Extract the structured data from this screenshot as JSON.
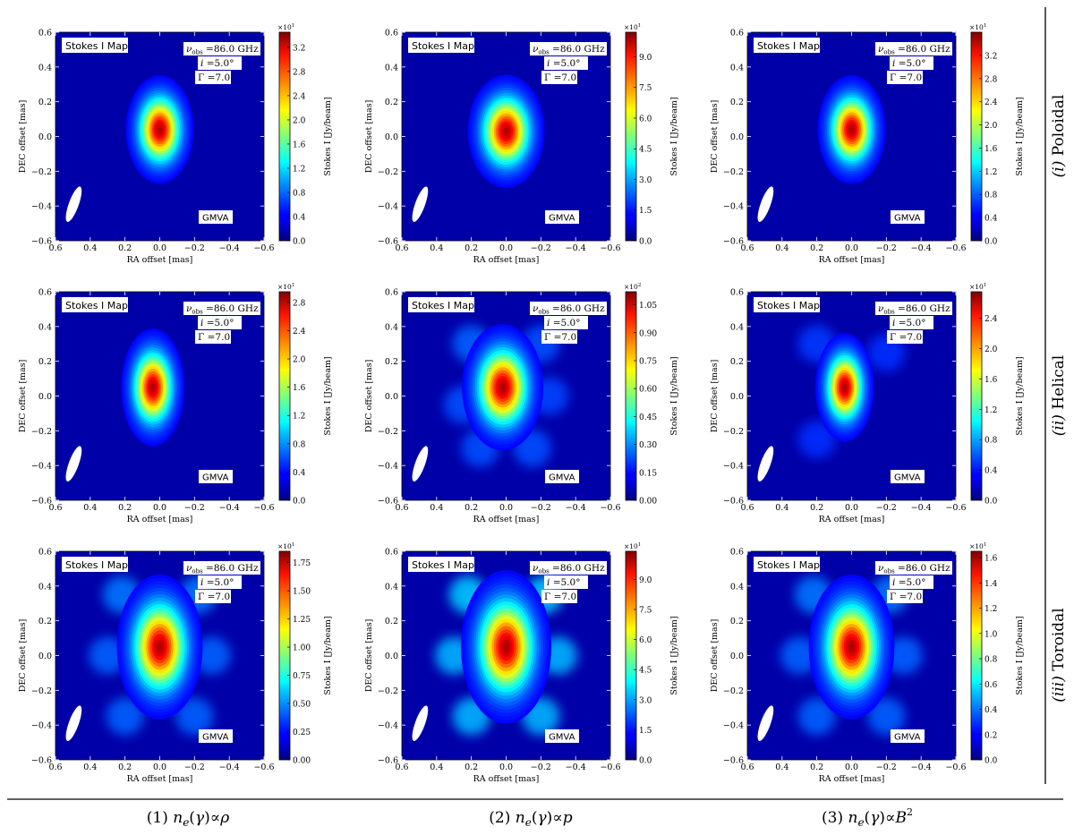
{
  "figure": {
    "row_labels": [
      {
        "prefix": "(i)",
        "name": "Poloidal"
      },
      {
        "prefix": "(ii)",
        "name": "Helical"
      },
      {
        "prefix": "(iii)",
        "name": "Toroidal"
      }
    ],
    "column_labels": [
      {
        "number": "(1)",
        "rhs": "ρ",
        "sup": ""
      },
      {
        "number": "(2)",
        "rhs": "p",
        "sup": ""
      },
      {
        "number": "(3)",
        "rhs": "B",
        "sup": "2"
      }
    ],
    "column_label_lhs": "n",
    "column_label_sub": "e",
    "column_label_arg": "(γ)∝"
  },
  "panel_text": {
    "map_label": "Stokes I Map",
    "nu_symbol": "ν",
    "nu_sub": "obs",
    "nu_value": "=86.0 GHz",
    "incl_symbol": "i",
    "incl_value": "=5.0°",
    "lorentz_symbol": "Γ",
    "lorentz_value": "=7.0",
    "array_label": "GMVA",
    "xlabel": "RA offset [mas]",
    "ylabel": "DEC offset [mas]",
    "cbar_label": "Stokes I [Jy/beam]"
  },
  "chart_data": [
    {
      "type": "heatmap",
      "row": 1,
      "col": 1,
      "cbar_exp": "1",
      "cbar_ticks": [
        "0.0",
        "0.4",
        "0.8",
        "1.2",
        "1.6",
        "2.0",
        "2.4",
        "2.8",
        "3.2"
      ],
      "cbar_max": 3.45,
      "source": {
        "dx": 0.0,
        "dy": 0.04,
        "sx": 0.075,
        "sy": 0.12
      },
      "secondary": []
    },
    {
      "type": "heatmap",
      "row": 1,
      "col": 2,
      "cbar_exp": "1",
      "cbar_ticks": [
        "0.0",
        "1.5",
        "3.0",
        "4.5",
        "6.0",
        "7.5",
        "9.0"
      ],
      "cbar_max": 10.2,
      "source": {
        "dx": 0.0,
        "dy": 0.03,
        "sx": 0.085,
        "sy": 0.125
      },
      "secondary": []
    },
    {
      "type": "heatmap",
      "row": 1,
      "col": 3,
      "cbar_exp": "1",
      "cbar_ticks": [
        "0.0",
        "0.4",
        "0.8",
        "1.2",
        "1.6",
        "2.0",
        "2.4",
        "2.8",
        "3.2"
      ],
      "cbar_max": 3.6,
      "source": {
        "dx": 0.0,
        "dy": 0.04,
        "sx": 0.075,
        "sy": 0.12
      },
      "secondary": []
    },
    {
      "type": "heatmap",
      "row": 2,
      "col": 1,
      "cbar_exp": "1",
      "cbar_ticks": [
        "0.0",
        "0.4",
        "0.8",
        "1.2",
        "1.6",
        "2.0",
        "2.4",
        "2.8"
      ],
      "cbar_max": 2.95,
      "source": {
        "dx": 0.04,
        "dy": 0.05,
        "sx": 0.07,
        "sy": 0.13
      },
      "secondary": []
    },
    {
      "type": "heatmap",
      "row": 2,
      "col": 2,
      "cbar_exp": "2",
      "cbar_ticks": [
        "0.00",
        "0.15",
        "0.30",
        "0.45",
        "0.60",
        "0.75",
        "0.90",
        "1.05"
      ],
      "cbar_max": 1.12,
      "source": {
        "dx": 0.02,
        "dy": 0.05,
        "sx": 0.09,
        "sy": 0.14
      },
      "secondary": [
        [
          0.2,
          0.3,
          0.1
        ],
        [
          -0.2,
          0.3,
          0.08
        ],
        [
          0.25,
          -0.05,
          0.08
        ],
        [
          -0.25,
          0.0,
          0.07
        ],
        [
          0.15,
          -0.3,
          0.08
        ],
        [
          -0.15,
          -0.3,
          0.08
        ]
      ]
    },
    {
      "type": "heatmap",
      "row": 2,
      "col": 3,
      "cbar_exp": "1",
      "cbar_ticks": [
        "0.0",
        "0.4",
        "0.8",
        "1.2",
        "1.6",
        "2.0",
        "2.4"
      ],
      "cbar_max": 2.75,
      "source": {
        "dx": 0.04,
        "dy": 0.05,
        "sx": 0.065,
        "sy": 0.12
      },
      "secondary": [
        [
          0.2,
          0.3,
          0.06
        ],
        [
          -0.2,
          0.25,
          0.05
        ],
        [
          0.2,
          -0.25,
          0.05
        ]
      ]
    },
    {
      "type": "heatmap",
      "row": 3,
      "col": 1,
      "cbar_exp": "1",
      "cbar_ticks": [
        "0.00",
        "0.25",
        "0.50",
        "0.75",
        "1.00",
        "1.25",
        "1.50",
        "1.75"
      ],
      "cbar_max": 1.85,
      "source": {
        "dx": 0.0,
        "dy": 0.05,
        "sx": 0.095,
        "sy": 0.16
      },
      "secondary": [
        [
          0.22,
          0.35,
          0.12
        ],
        [
          -0.22,
          0.35,
          0.12
        ],
        [
          0.3,
          0.0,
          0.1
        ],
        [
          -0.3,
          0.0,
          0.1
        ],
        [
          0.2,
          -0.35,
          0.1
        ],
        [
          -0.2,
          -0.35,
          0.1
        ]
      ]
    },
    {
      "type": "heatmap",
      "row": 3,
      "col": 2,
      "cbar_exp": "1",
      "cbar_ticks": [
        "0.0",
        "1.5",
        "3.0",
        "4.5",
        "6.0",
        "7.5",
        "9.0"
      ],
      "cbar_max": 10.4,
      "source": {
        "dx": 0.0,
        "dy": 0.05,
        "sx": 0.1,
        "sy": 0.17
      },
      "secondary": [
        [
          0.22,
          0.35,
          0.2
        ],
        [
          -0.22,
          0.35,
          0.2
        ],
        [
          0.3,
          0.0,
          0.18
        ],
        [
          -0.3,
          0.0,
          0.18
        ],
        [
          0.2,
          -0.35,
          0.18
        ],
        [
          -0.2,
          -0.35,
          0.18
        ]
      ]
    },
    {
      "type": "heatmap",
      "row": 3,
      "col": 3,
      "cbar_exp": "1",
      "cbar_ticks": [
        "0.0",
        "0.2",
        "0.4",
        "0.6",
        "0.8",
        "1.0",
        "1.2",
        "1.4",
        "1.6"
      ],
      "cbar_max": 1.65,
      "source": {
        "dx": 0.0,
        "dy": 0.05,
        "sx": 0.095,
        "sy": 0.16
      },
      "secondary": [
        [
          0.22,
          0.35,
          0.12
        ],
        [
          -0.22,
          0.35,
          0.12
        ],
        [
          0.3,
          0.0,
          0.1
        ],
        [
          -0.3,
          0.0,
          0.1
        ],
        [
          0.2,
          -0.35,
          0.1
        ],
        [
          -0.2,
          -0.35,
          0.1
        ]
      ]
    }
  ],
  "axes": {
    "x_ticks": [
      "0.6",
      "0.4",
      "0.2",
      "0.0",
      "−0.2",
      "−0.4",
      "−0.6"
    ],
    "y_ticks": [
      "0.6",
      "0.4",
      "0.2",
      "0.0",
      "−0.2",
      "−0.4",
      "−0.6"
    ],
    "xlim": [
      0.6,
      -0.6
    ],
    "ylim": [
      -0.6,
      0.6
    ]
  }
}
